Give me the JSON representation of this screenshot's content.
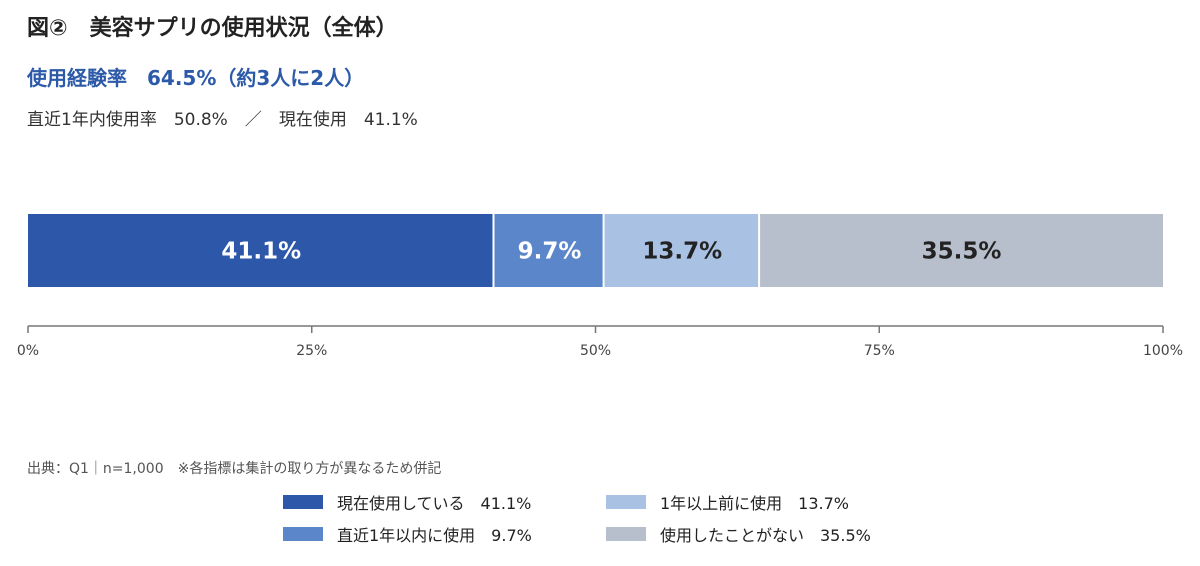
{
  "header": {
    "title": "図②　美容サプリの使用状況（全体）",
    "subtitle": "使用経験率　64.5%（約3人に2人）",
    "note": "直近1年内使用率　50.8%　／　現在使用　41.1%"
  },
  "chart_data": {
    "type": "bar",
    "orientation": "horizontal-stacked-100",
    "segments": [
      {
        "name": "現在使用している",
        "value": 41.1,
        "label": "41.1%",
        "color": "#2d57a8",
        "text_color": "#ffffff"
      },
      {
        "name": "直近1年以内に使用",
        "value": 9.7,
        "label": "9.7%",
        "color": "#5b86c9",
        "text_color": "#ffffff"
      },
      {
        "name": "1年以上前に使用",
        "value": 13.7,
        "label": "13.7%",
        "color": "#a9c2e4",
        "text_color": "#222222"
      },
      {
        "name": "使用したことがない",
        "value": 35.5,
        "label": "35.5%",
        "color": "#b8bfcc",
        "text_color": "#222222"
      }
    ],
    "xlim": [
      0,
      100
    ],
    "ticks": [
      0,
      25,
      50,
      75,
      100
    ],
    "tick_labels": [
      "0%",
      "25%",
      "50%",
      "75%",
      "100%"
    ],
    "grid": false
  },
  "source": "出典：Q1｜n=1,000　※各指標は集計の取り方が異なるため併記",
  "legend": {
    "items": [
      {
        "label": "現在使用している　41.1%",
        "color": "#2d57a8"
      },
      {
        "label": "直近1年以内に使用　9.7%",
        "color": "#5b86c9"
      },
      {
        "label": "1年以上前に使用　13.7%",
        "color": "#a9c2e4"
      },
      {
        "label": "使用したことがない　35.5%",
        "color": "#b8bfcc"
      }
    ]
  }
}
